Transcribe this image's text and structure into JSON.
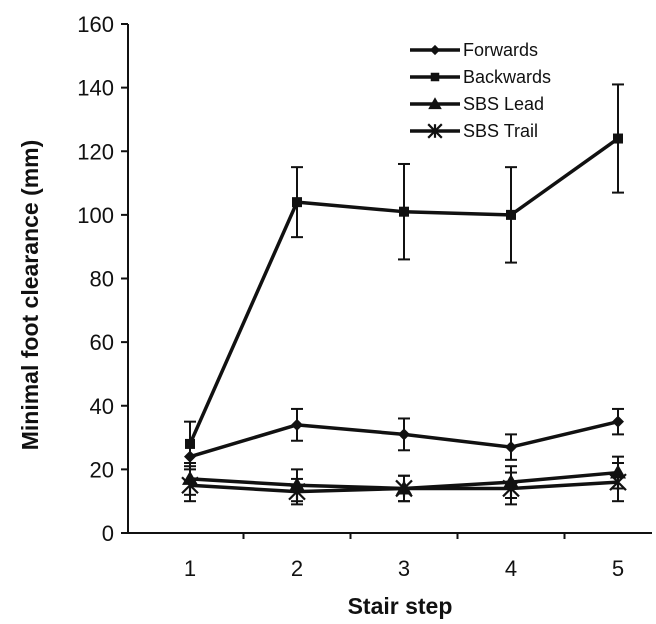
{
  "chart_data": {
    "type": "line",
    "xlabel": "Stair step",
    "ylabel": "Minimal foot clearance (mm)",
    "ylim": [
      0,
      160
    ],
    "yticks": [
      0,
      20,
      40,
      60,
      80,
      100,
      120,
      140,
      160
    ],
    "categories": [
      "1",
      "2",
      "3",
      "4",
      "5"
    ],
    "x": [
      1,
      2,
      3,
      4,
      5
    ],
    "grid": false,
    "legend_position": "top-right",
    "series": [
      {
        "name": "Forwards",
        "marker": "diamond",
        "values": [
          24,
          34,
          31,
          27,
          35
        ],
        "error": [
          0,
          5,
          5,
          4,
          4
        ]
      },
      {
        "name": "Backwards",
        "marker": "square",
        "values": [
          28,
          104,
          101,
          100,
          124
        ],
        "error": [
          7,
          11,
          15,
          15,
          17
        ]
      },
      {
        "name": "SBS Lead",
        "marker": "triangle",
        "values": [
          17,
          15,
          14,
          16,
          19
        ],
        "error": [
          5,
          5,
          4,
          5,
          5
        ]
      },
      {
        "name": "SBS Trail",
        "marker": "x",
        "values": [
          15,
          13,
          14,
          14,
          16
        ],
        "error": [
          5,
          4,
          4,
          5,
          6
        ]
      }
    ]
  }
}
